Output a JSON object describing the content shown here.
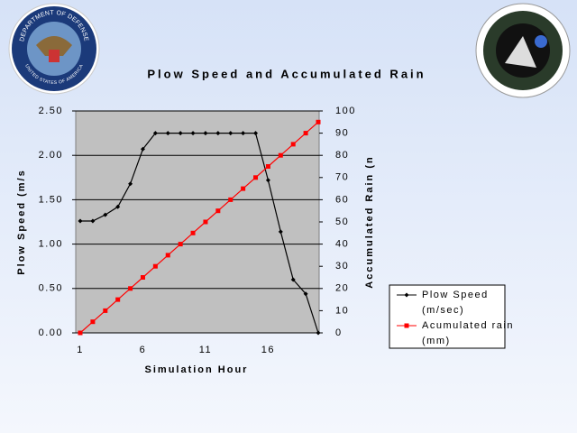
{
  "logo_text": {
    "top": "DEPARTMENT OF DEFENSE",
    "bottom": "UNITED STATES OF AMERICA"
  },
  "chart_data": {
    "type": "line",
    "title": "Plow Speed and Accumulated Rain",
    "x_label": "Simulation Hour",
    "y_label": "Plow Speed (m/s",
    "y2_label": "Accumulated Rain (n",
    "categories": [
      1,
      null,
      null,
      null,
      null,
      6,
      null,
      null,
      null,
      null,
      11,
      null,
      null,
      null,
      null,
      16,
      null,
      null,
      null,
      null
    ],
    "ylim": [
      0,
      2.5
    ],
    "yticks": [
      {
        "value": 0,
        "label": "0.00"
      },
      {
        "value": 0.5,
        "label": "0.50"
      },
      {
        "value": 1,
        "label": "1.00"
      },
      {
        "value": 1.5,
        "label": "1.50"
      },
      {
        "value": 2,
        "label": "2.00"
      },
      {
        "value": 2.5,
        "label": "2.50"
      }
    ],
    "y2lim": [
      0,
      100
    ],
    "y2ticks": [
      0,
      10,
      20,
      30,
      40,
      50,
      60,
      70,
      80,
      90,
      100
    ],
    "grid": true,
    "series": [
      {
        "name": "Plow Speed (m/sec)",
        "color": "#000000",
        "axis": "y",
        "values": [
          1.26,
          1.26,
          1.33,
          1.42,
          1.68,
          2.07,
          2.25,
          2.25,
          2.25,
          2.25,
          2.25,
          2.25,
          2.25,
          2.25,
          2.25,
          1.72,
          1.14,
          0.6,
          0.44,
          0
        ]
      },
      {
        "name": "Acumulated rain (mm)",
        "color": "#ff0000",
        "axis": "y2",
        "values": [
          0,
          5,
          10,
          15,
          20,
          25,
          30,
          35,
          40,
          45,
          50,
          55,
          60,
          65,
          70,
          75,
          80,
          85,
          90,
          95
        ]
      }
    ]
  }
}
